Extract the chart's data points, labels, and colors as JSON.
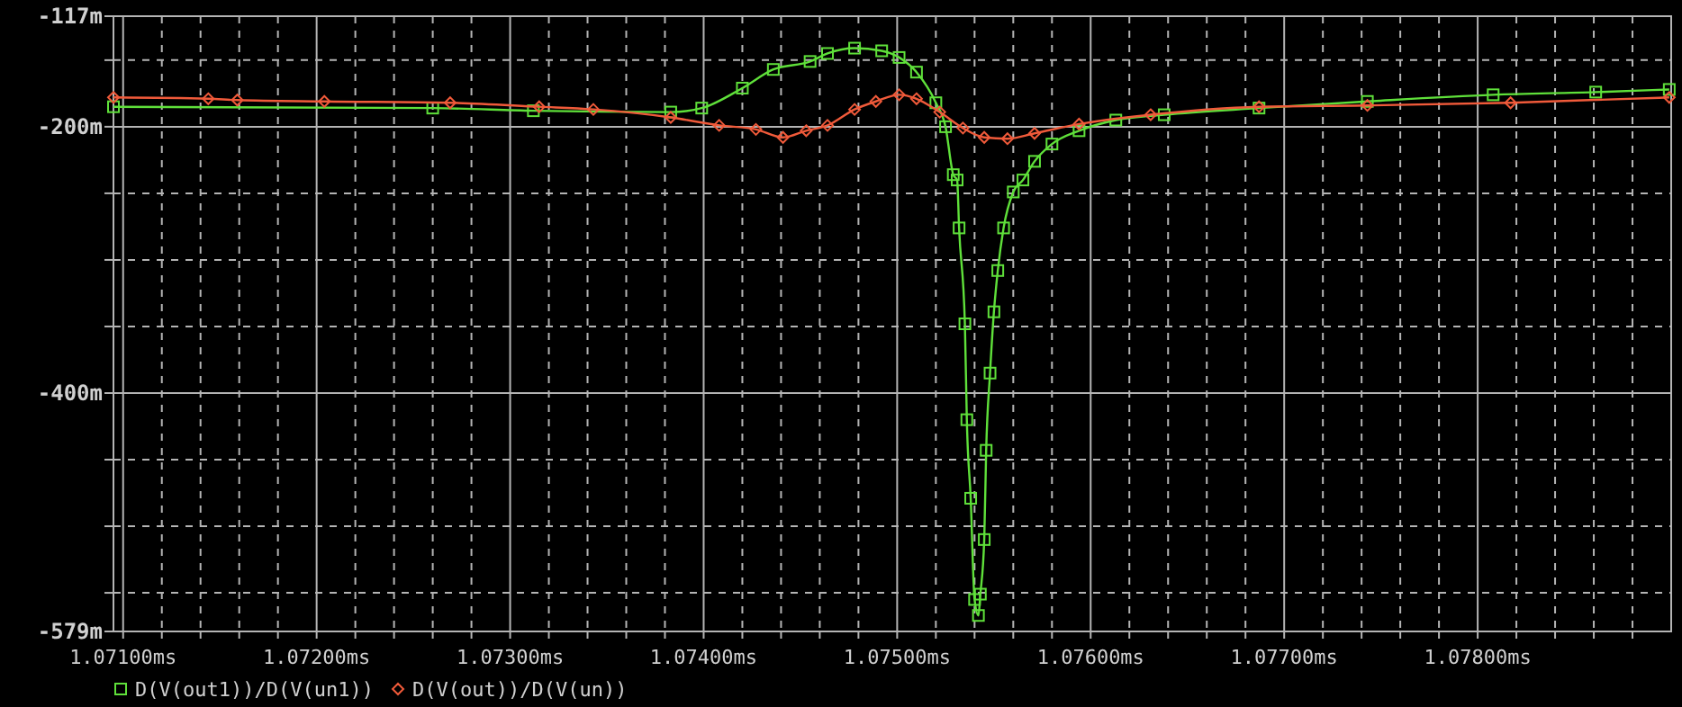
{
  "chart_data": {
    "type": "line",
    "xlim": [
      1.07095,
      1.079
    ],
    "ylim": [
      -579,
      -117
    ],
    "xticks": [
      {
        "value": 1.071,
        "label": "1.07100ms"
      },
      {
        "value": 1.0712,
        "label": null
      },
      {
        "value": 1.0714,
        "label": null
      },
      {
        "value": 1.0716,
        "label": null
      },
      {
        "value": 1.0718,
        "label": null
      },
      {
        "value": 1.072,
        "label": "1.07200ms"
      },
      {
        "value": 1.0722,
        "label": null
      },
      {
        "value": 1.0724,
        "label": null
      },
      {
        "value": 1.0726,
        "label": null
      },
      {
        "value": 1.0728,
        "label": null
      },
      {
        "value": 1.073,
        "label": "1.07300ms"
      },
      {
        "value": 1.0732,
        "label": null
      },
      {
        "value": 1.0734,
        "label": null
      },
      {
        "value": 1.0736,
        "label": null
      },
      {
        "value": 1.0738,
        "label": null
      },
      {
        "value": 1.074,
        "label": "1.07400ms"
      },
      {
        "value": 1.0742,
        "label": null
      },
      {
        "value": 1.0744,
        "label": null
      },
      {
        "value": 1.0746,
        "label": null
      },
      {
        "value": 1.0748,
        "label": null
      },
      {
        "value": 1.075,
        "label": "1.07500ms"
      },
      {
        "value": 1.0752,
        "label": null
      },
      {
        "value": 1.0754,
        "label": null
      },
      {
        "value": 1.0756,
        "label": null
      },
      {
        "value": 1.0758,
        "label": null
      },
      {
        "value": 1.076,
        "label": "1.07600ms"
      },
      {
        "value": 1.0762,
        "label": null
      },
      {
        "value": 1.0764,
        "label": null
      },
      {
        "value": 1.0766,
        "label": null
      },
      {
        "value": 1.0768,
        "label": null
      },
      {
        "value": 1.077,
        "label": "1.07700ms"
      },
      {
        "value": 1.0772,
        "label": null
      },
      {
        "value": 1.0774,
        "label": null
      },
      {
        "value": 1.0776,
        "label": null
      },
      {
        "value": 1.0778,
        "label": null
      },
      {
        "value": 1.078,
        "label": "1.07800ms"
      },
      {
        "value": 1.0782,
        "label": null
      },
      {
        "value": 1.0784,
        "label": null
      },
      {
        "value": 1.0786,
        "label": null
      },
      {
        "value": 1.0788,
        "label": null
      }
    ],
    "yticks": [
      {
        "value": -117,
        "label": "-117m"
      },
      {
        "value": -150,
        "label": null
      },
      {
        "value": -200,
        "label": "-200m"
      },
      {
        "value": -250,
        "label": null
      },
      {
        "value": -300,
        "label": null
      },
      {
        "value": -350,
        "label": null
      },
      {
        "value": -400,
        "label": "-400m"
      },
      {
        "value": -450,
        "label": null
      },
      {
        "value": -500,
        "label": null
      },
      {
        "value": -550,
        "label": null
      },
      {
        "value": -579,
        "label": "-579m"
      }
    ],
    "grid": true,
    "legend": "bottom",
    "series": [
      {
        "name": "D(V(out1))/D(V(un1))",
        "color": "#5fe03a",
        "marker": "square",
        "x": [
          1.07095,
          1.0726,
          1.07312,
          1.07383,
          1.07399,
          1.0742,
          1.07436,
          1.07455,
          1.07464,
          1.07478,
          1.07492,
          1.07501,
          1.0751,
          1.0752,
          1.07525,
          1.07529,
          1.07531,
          1.07532,
          1.07535,
          1.07536,
          1.07538,
          1.0754,
          1.07542,
          1.07543,
          1.07545,
          1.07546,
          1.07548,
          1.0755,
          1.07552,
          1.07555,
          1.0756,
          1.07565,
          1.07571,
          1.0758,
          1.07594,
          1.07613,
          1.07638,
          1.07687,
          1.07743,
          1.07808,
          1.07861,
          1.07899
        ],
        "values": [
          -185,
          -186,
          -188,
          -189,
          -186,
          -171,
          -157,
          -151,
          -145,
          -141,
          -143,
          -148,
          -159,
          -182,
          -200,
          -236,
          -240,
          -276,
          -348,
          -420,
          -479,
          -555,
          -567,
          -551,
          -510,
          -443,
          -385,
          -339,
          -308,
          -276,
          -249,
          -240,
          -226,
          -213,
          -203,
          -195,
          -191,
          -186,
          -181,
          -176,
          -174,
          -172
        ]
      },
      {
        "name": "D(V(out))/D(V(un))",
        "color": "#f05a3a",
        "marker": "diamond",
        "x": [
          1.07095,
          1.07144,
          1.07159,
          1.07204,
          1.07269,
          1.07315,
          1.07343,
          1.07383,
          1.07408,
          1.07427,
          1.07441,
          1.07453,
          1.07464,
          1.07478,
          1.07489,
          1.07501,
          1.0751,
          1.07522,
          1.07534,
          1.07545,
          1.07557,
          1.07571,
          1.07594,
          1.07631,
          1.07687,
          1.07743,
          1.07817,
          1.07899
        ],
        "values": [
          -178,
          -179,
          -180,
          -181,
          -182,
          -185,
          -187,
          -193,
          -199,
          -202,
          -208,
          -203,
          -199,
          -187,
          -181,
          -176,
          -179,
          -189,
          -201,
          -208,
          -209,
          -205,
          -198,
          -191,
          -185,
          -184,
          -182,
          -178
        ]
      }
    ]
  }
}
